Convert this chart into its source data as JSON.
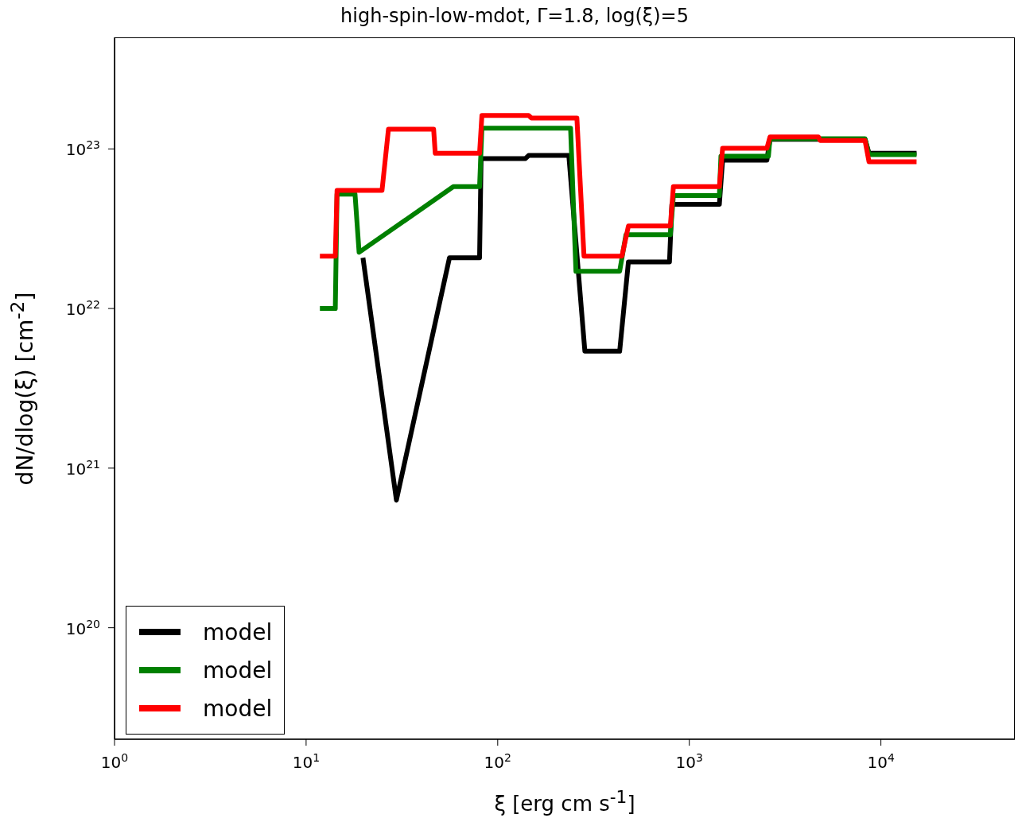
{
  "chart_data": {
    "type": "line",
    "title": "high-spin-low-mdot,  Γ=1.8, log(ξ)=5",
    "xlabel": "ξ  [erg cm s$^{-1}$]",
    "ylabel": "dN/dlog(ξ)  [cm$^{-2}$]",
    "log": "xy",
    "xlim": [
      1,
      50000
    ],
    "ylim": [
      2e+19,
      5e+23
    ],
    "xticks": [
      {
        "value": 1,
        "label": "10$^{0}$"
      },
      {
        "value": 10,
        "label": "10$^{1}$"
      },
      {
        "value": 100,
        "label": "10$^{2}$"
      },
      {
        "value": 1000,
        "label": "10$^{3}$"
      },
      {
        "value": 10000,
        "label": "10$^{4}$"
      }
    ],
    "yticks": [
      {
        "value": 1e+20,
        "label": "10$^{20}$"
      },
      {
        "value": 1e+21,
        "label": "10$^{21}$"
      },
      {
        "value": 1e+22,
        "label": "10$^{22}$"
      },
      {
        "value": 1e+23,
        "label": "10$^{23}$"
      }
    ],
    "grid": false,
    "legend": "bottom left",
    "marker": "none",
    "line_style": "solid",
    "series": [
      {
        "name": "model",
        "color": "#000000",
        "x": [
          19.8,
          29.6,
          56,
          80.4,
          81.9,
          139.6,
          145,
          235,
          285,
          433,
          481,
          788,
          811,
          1435,
          1492,
          2541,
          2636,
          8262,
          8670,
          15350
        ],
        "values": [
          2.08e+22,
          6.3e+20,
          2.08e+22,
          2.08e+22,
          8.7e+22,
          8.7e+22,
          9.1e+22,
          9.1e+22,
          5.4e+21,
          5.4e+21,
          1.96e+22,
          1.96e+22,
          4.5e+22,
          4.5e+22,
          8.5e+22,
          8.5e+22,
          1.15e+23,
          1.15e+23,
          9.4e+22,
          9.4e+22
        ]
      },
      {
        "name": "model",
        "color": "#008000",
        "x": [
          11.8,
          14.2,
          14.5,
          18,
          18.9,
          58.7,
          80.4,
          82.7,
          240,
          256,
          433,
          467,
          796,
          826,
          1435,
          1462,
          2588,
          2636,
          8262,
          8670,
          15350
        ],
        "values": [
          1e+22,
          1e+22,
          5.2e+22,
          5.2e+22,
          2.25e+22,
          5.8e+22,
          5.8e+22,
          1.35e+23,
          1.35e+23,
          1.71e+22,
          1.71e+22,
          2.9e+22,
          2.9e+22,
          5.1e+22,
          5.1e+22,
          9e+22,
          9e+22,
          1.16e+23,
          1.16e+23,
          9.2e+22,
          9.2e+22
        ]
      },
      {
        "name": "model",
        "color": "#ff0000",
        "x": [
          11.8,
          14.2,
          14.5,
          24.9,
          26.9,
          46.3,
          47.2,
          80.4,
          82.7,
          145,
          150,
          259,
          282,
          445,
          481,
          796,
          826,
          1435,
          1492,
          2541,
          2636,
          4720,
          4808,
          8262,
          8670,
          15350
        ],
        "values": [
          2.13e+22,
          2.13e+22,
          5.5e+22,
          5.5e+22,
          1.33e+23,
          1.33e+23,
          9.4e+22,
          9.4e+22,
          1.62e+23,
          1.62e+23,
          1.56e+23,
          1.56e+23,
          2.13e+22,
          2.13e+22,
          3.29e+22,
          3.29e+22,
          5.8e+22,
          5.8e+22,
          1.01e+23,
          1.01e+23,
          1.19e+23,
          1.19e+23,
          1.13e+23,
          1.13e+23,
          8.3e+22,
          8.3e+22
        ]
      }
    ]
  }
}
